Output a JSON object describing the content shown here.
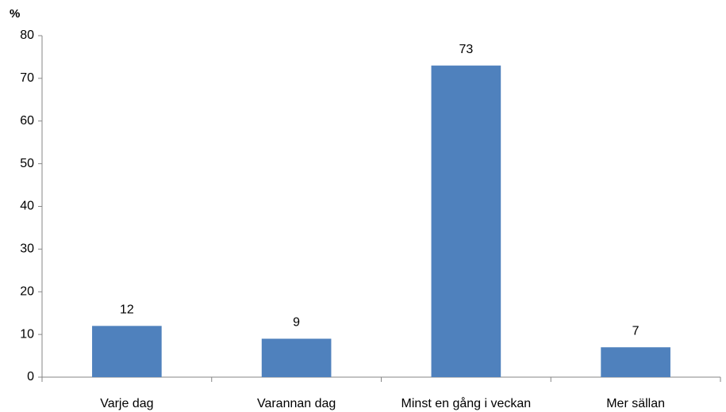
{
  "chart_data": {
    "type": "bar",
    "y_label": "%",
    "categories": [
      "Varje dag",
      "Varannan dag",
      "Minst en gång i veckan",
      "Mer sällan"
    ],
    "values": [
      12,
      9,
      73,
      7
    ],
    "color": "#4f81bd",
    "ylim": [
      0,
      80
    ],
    "yticks": [
      0,
      10,
      20,
      30,
      40,
      50,
      60,
      70,
      80
    ],
    "grid": false
  }
}
